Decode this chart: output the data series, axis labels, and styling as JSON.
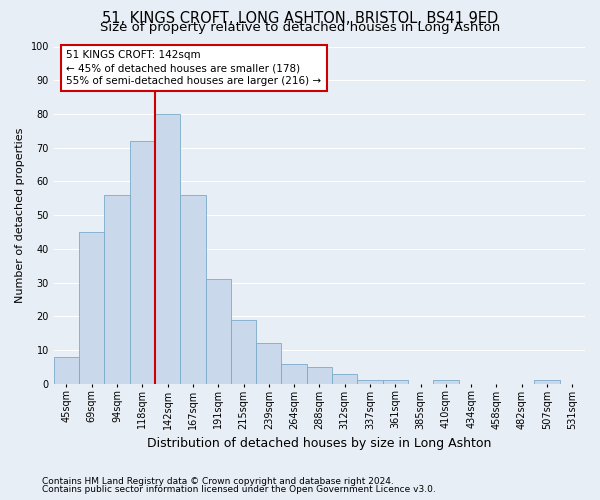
{
  "title": "51, KINGS CROFT, LONG ASHTON, BRISTOL, BS41 9ED",
  "subtitle": "Size of property relative to detached houses in Long Ashton",
  "xlabel": "Distribution of detached houses by size in Long Ashton",
  "ylabel": "Number of detached properties",
  "footnote1": "Contains HM Land Registry data © Crown copyright and database right 2024.",
  "footnote2": "Contains public sector information licensed under the Open Government Licence v3.0.",
  "bin_labels": [
    "45sqm",
    "69sqm",
    "94sqm",
    "118sqm",
    "142sqm",
    "167sqm",
    "191sqm",
    "215sqm",
    "239sqm",
    "264sqm",
    "288sqm",
    "312sqm",
    "337sqm",
    "361sqm",
    "385sqm",
    "410sqm",
    "434sqm",
    "458sqm",
    "482sqm",
    "507sqm",
    "531sqm"
  ],
  "bar_values": [
    8,
    45,
    56,
    72,
    80,
    56,
    31,
    19,
    12,
    6,
    5,
    3,
    1,
    1,
    0,
    1,
    0,
    0,
    0,
    1,
    0
  ],
  "bar_color": "#c9d9eb",
  "bar_edge_color": "#7aaac8",
  "vline_index": 4,
  "vline_color": "#cc0000",
  "annotation_text": "51 KINGS CROFT: 142sqm\n← 45% of detached houses are smaller (178)\n55% of semi-detached houses are larger (216) →",
  "annotation_box_color": "white",
  "annotation_box_edge": "#cc0000",
  "ylim": [
    0,
    100
  ],
  "yticks": [
    0,
    10,
    20,
    30,
    40,
    50,
    60,
    70,
    80,
    90,
    100
  ],
  "bg_color": "#e8eef5",
  "plot_bg_color": "#e8eef5",
  "grid_color": "#ffffff",
  "title_fontsize": 10.5,
  "subtitle_fontsize": 9.5,
  "xlabel_fontsize": 9,
  "ylabel_fontsize": 8,
  "tick_fontsize": 7,
  "footnote_fontsize": 6.5
}
